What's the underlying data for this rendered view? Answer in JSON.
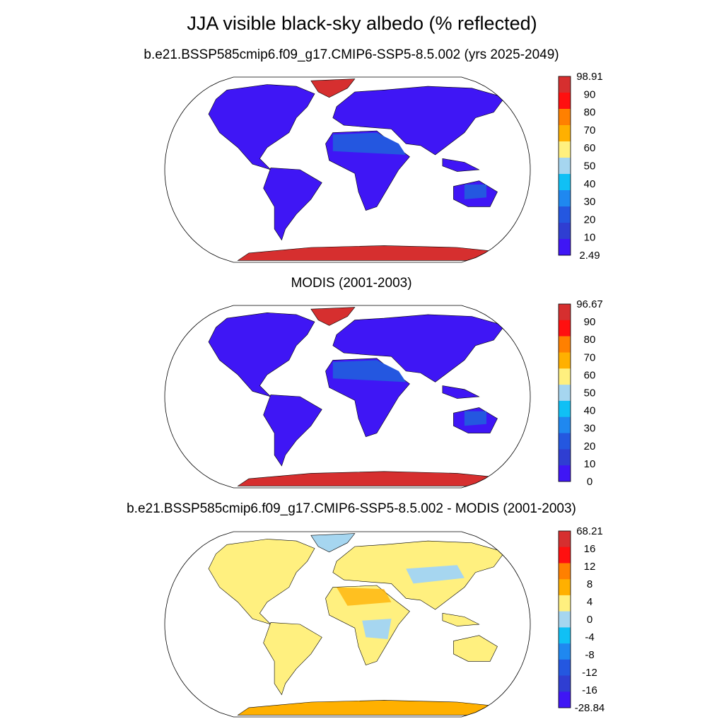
{
  "title": "JJA visible black-sky albedo (% reflected)",
  "panels": [
    {
      "title": "b.e21.BSSP585cmip6.f09_g17.CMIP6-SSP5-8.5.002 (yrs 2025-2049)",
      "colorbar": {
        "labels": [
          "98.91",
          "90",
          "80",
          "70",
          "60",
          "50",
          "40",
          "30",
          "20",
          "10",
          "2.49"
        ],
        "colors": [
          "#d62f2f",
          "#ff1010",
          "#ff8000",
          "#ffb000",
          "#fff07f",
          "#a6d6f0",
          "#10c0f5",
          "#1f88f0",
          "#2457e0",
          "#2f3ed2",
          "#3f16f5"
        ]
      }
    },
    {
      "title": "MODIS (2001-2003)",
      "colorbar": {
        "labels": [
          "96.67",
          "90",
          "80",
          "70",
          "60",
          "50",
          "40",
          "30",
          "20",
          "10",
          "0"
        ],
        "colors": [
          "#d62f2f",
          "#ff1010",
          "#ff8000",
          "#ffb000",
          "#fff07f",
          "#a6d6f0",
          "#10c0f5",
          "#1f88f0",
          "#2457e0",
          "#2f3ed2",
          "#3f16f5"
        ]
      }
    },
    {
      "title": "b.e21.BSSP585cmip6.f09_g17.CMIP6-SSP5-8.5.002 - MODIS (2001-2003)",
      "colorbar": {
        "labels": [
          "68.21",
          "16",
          "12",
          "8",
          "4",
          "0",
          "-4",
          "-8",
          "-12",
          "-16",
          "-28.84"
        ],
        "colors": [
          "#d62f2f",
          "#ff1010",
          "#ff8000",
          "#ffb000",
          "#fff07f",
          "#a6d6f0",
          "#10c0f5",
          "#1f88f0",
          "#2457e0",
          "#2f3ed2",
          "#3f16f5"
        ]
      }
    }
  ],
  "map": {
    "projection": "robinson",
    "land_fill_model": "#3f16f5",
    "land_fill_modis": "#3f16f5",
    "land_fill_diff": "#fff07f",
    "desert_fill": "#2457e0",
    "ice_fill": "#d62f2f",
    "diff_positive_fill": "#ffb000",
    "diff_negative_fill": "#a6d6f0"
  }
}
